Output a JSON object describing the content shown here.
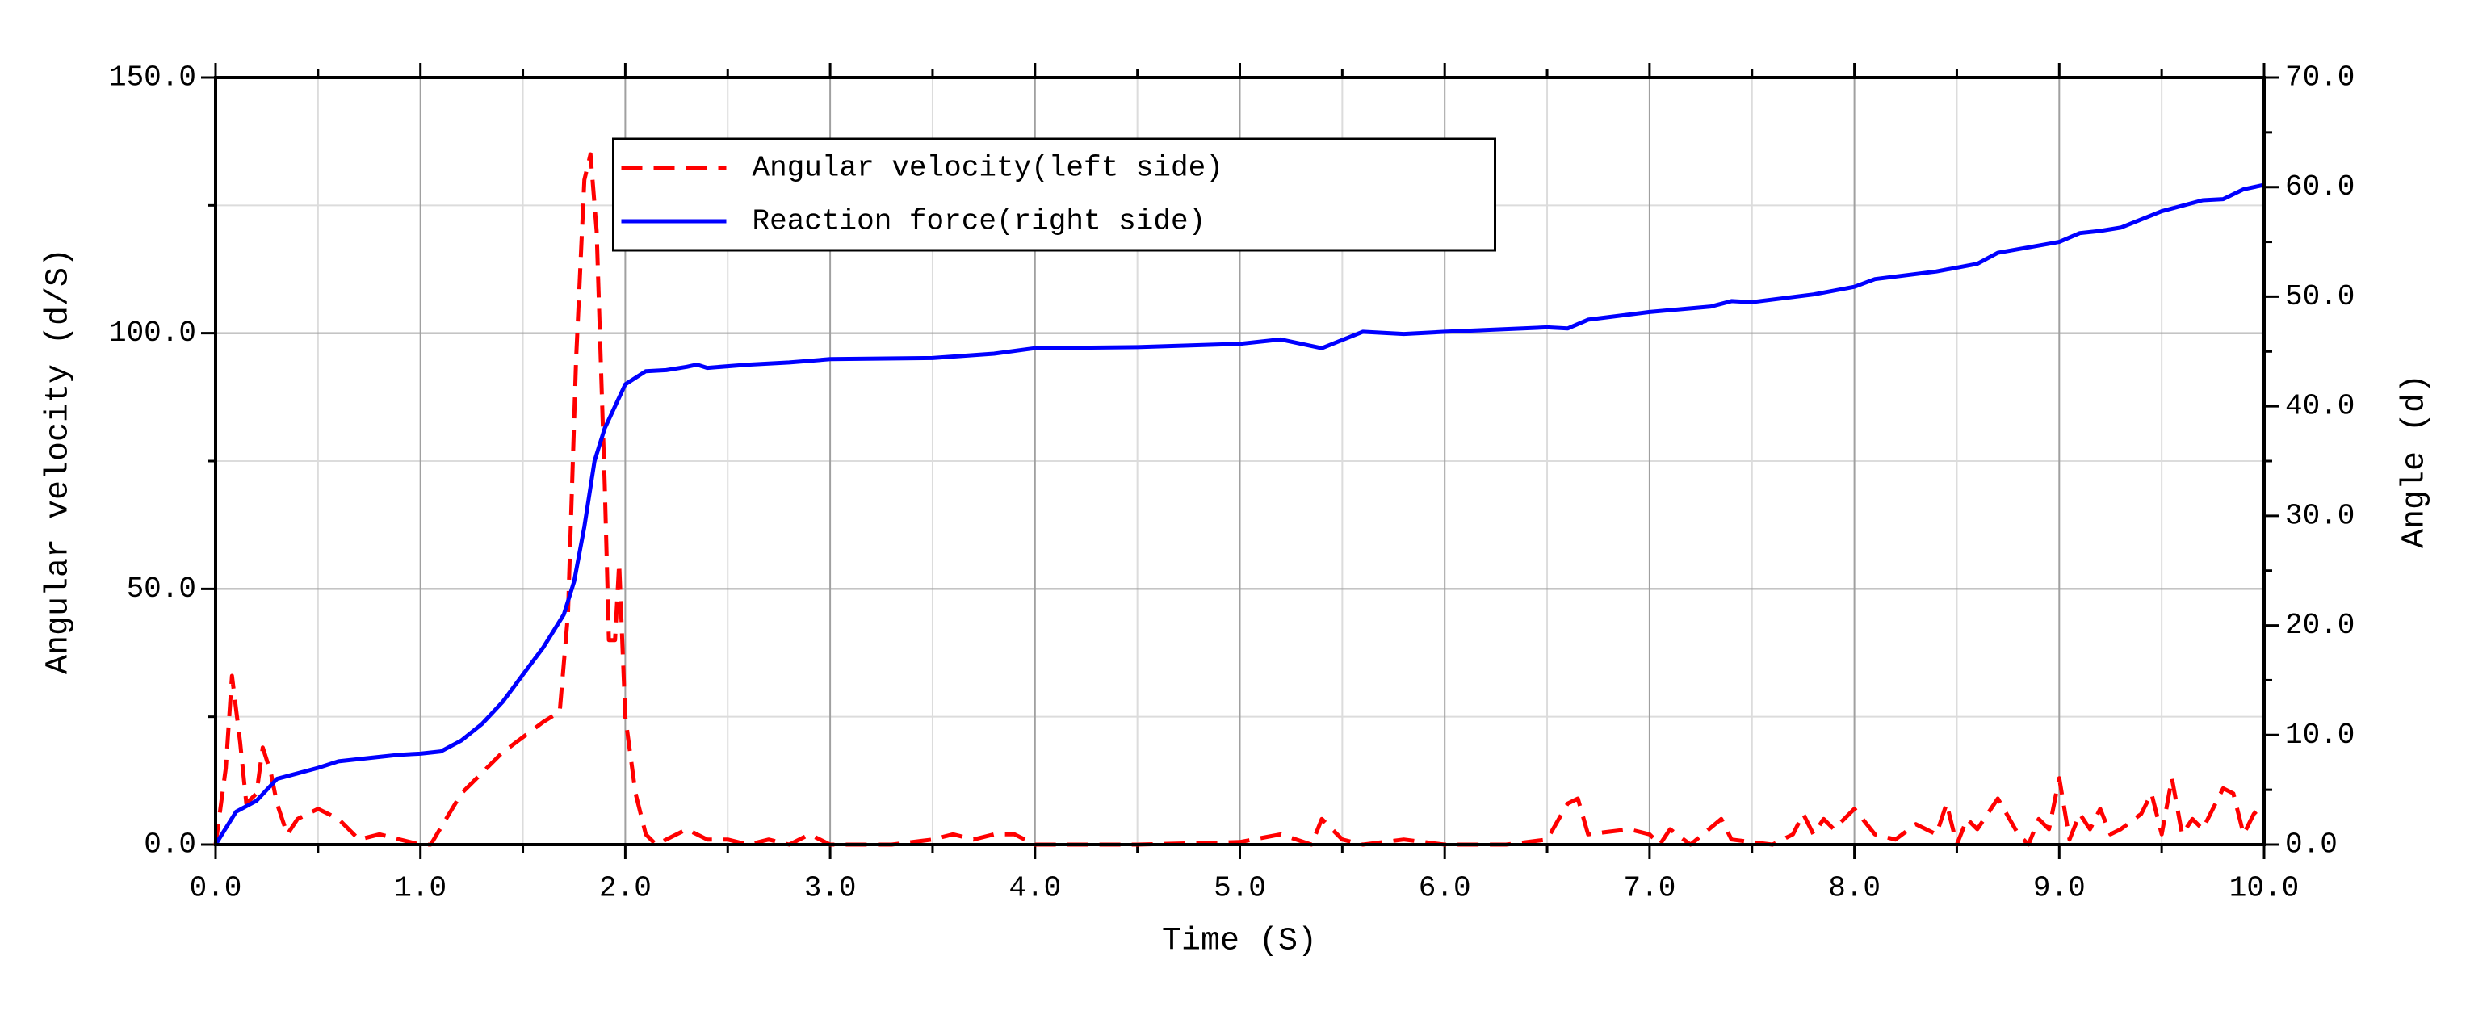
{
  "chart_data": {
    "type": "line",
    "xlabel": "Time (S)",
    "ylabel": "Angular velocity (d/S)",
    "y2label": "Angle (d)",
    "xlim": [
      0,
      10
    ],
    "ylim": [
      0,
      150
    ],
    "y2lim": [
      0,
      70
    ],
    "xticks": [
      {
        "value": 0,
        "label": "0.0"
      },
      {
        "value": 1,
        "label": "1.0"
      },
      {
        "value": 2,
        "label": "2.0"
      },
      {
        "value": 3,
        "label": "3.0"
      },
      {
        "value": 4,
        "label": "4.0"
      },
      {
        "value": 5,
        "label": "5.0"
      },
      {
        "value": 6,
        "label": "6.0"
      },
      {
        "value": 7,
        "label": "7.0"
      },
      {
        "value": 8,
        "label": "8.0"
      },
      {
        "value": 9,
        "label": "9.0"
      },
      {
        "value": 10,
        "label": "10.0"
      }
    ],
    "yticks": [
      {
        "value": 0,
        "label": "0.0"
      },
      {
        "value": 50,
        "label": "50.0"
      },
      {
        "value": 100,
        "label": "100.0"
      },
      {
        "value": 150,
        "label": "150.0"
      }
    ],
    "y2ticks": [
      {
        "value": 0,
        "label": "0.0"
      },
      {
        "value": 10,
        "label": "10.0"
      },
      {
        "value": 20,
        "label": "20.0"
      },
      {
        "value": 30,
        "label": "30.0"
      },
      {
        "value": 40,
        "label": "40.0"
      },
      {
        "value": 50,
        "label": "50.0"
      },
      {
        "value": 60,
        "label": "60.0"
      },
      {
        "value": 70,
        "label": "70.0"
      }
    ],
    "xminorticks": [
      0.5,
      1.5,
      2.5,
      3.5,
      4.5,
      5.5,
      6.5,
      7.5,
      8.5,
      9.5
    ],
    "yminorticks": [
      25,
      75,
      125
    ],
    "y2minorticks": [
      5,
      15,
      25,
      35,
      45,
      55,
      65
    ],
    "grid": true,
    "legend": "upper center",
    "series": [
      {
        "name": "Angular velocity(left side)",
        "color": "#ff0000",
        "style": "dashed",
        "axis": "y",
        "x": [
          0,
          0.05,
          0.08,
          0.12,
          0.15,
          0.2,
          0.23,
          0.27,
          0.3,
          0.35,
          0.4,
          0.5,
          0.6,
          0.7,
          0.8,
          0.9,
          1.0,
          1.05,
          1.2,
          1.4,
          1.6,
          1.68,
          1.72,
          1.76,
          1.8,
          1.83,
          1.86,
          1.9,
          1.92,
          1.95,
          1.97,
          2.0,
          2.05,
          2.1,
          2.15,
          2.2,
          2.3,
          2.4,
          2.5,
          2.6,
          2.7,
          2.8,
          2.9,
          3.0,
          3.3,
          3.5,
          3.6,
          3.7,
          3.8,
          3.9,
          4.0,
          4.5,
          5.0,
          5.2,
          5.35,
          5.4,
          5.5,
          5.6,
          5.8,
          6.0,
          6.3,
          6.5,
          6.6,
          6.65,
          6.7,
          6.9,
          7.0,
          7.05,
          7.1,
          7.2,
          7.35,
          7.4,
          7.6,
          7.7,
          7.75,
          7.8,
          7.85,
          7.9,
          8.0,
          8.1,
          8.2,
          8.3,
          8.4,
          8.45,
          8.5,
          8.55,
          8.6,
          8.7,
          8.8,
          8.85,
          8.9,
          8.95,
          9.0,
          9.05,
          9.1,
          9.15,
          9.2,
          9.25,
          9.3,
          9.4,
          9.45,
          9.5,
          9.55,
          9.6,
          9.65,
          9.7,
          9.8,
          9.85,
          9.9,
          9.95,
          10.0
        ],
        "values": [
          0,
          15,
          33,
          20,
          8,
          10,
          19,
          14,
          8,
          2,
          5,
          7,
          5,
          1,
          2,
          1,
          0,
          0,
          10,
          18,
          24,
          26,
          45,
          95,
          130,
          135,
          120,
          70,
          40,
          40,
          55,
          25,
          10,
          2,
          0,
          1,
          3,
          1,
          1,
          0,
          1,
          0,
          2,
          0,
          0,
          1,
          2,
          1,
          2,
          2,
          0,
          0,
          0.5,
          2,
          0,
          5,
          1,
          0,
          1,
          0,
          0,
          1,
          8,
          9,
          2,
          3,
          2,
          0,
          3,
          0,
          5,
          1,
          0,
          2,
          6,
          2,
          5,
          3,
          7,
          2,
          1,
          4,
          2,
          8,
          0,
          5,
          3,
          9,
          2,
          0,
          5,
          3,
          13,
          1,
          6,
          3,
          7,
          2,
          3,
          6,
          10,
          2,
          13,
          2,
          5,
          3,
          11,
          10,
          2,
          6,
          8
        ]
      },
      {
        "name": "Reaction force(right side)",
        "color": "#0000ff",
        "style": "solid",
        "axis": "y2",
        "x": [
          0,
          0.05,
          0.1,
          0.2,
          0.3,
          0.4,
          0.5,
          0.6,
          0.7,
          0.8,
          0.9,
          1.0,
          1.1,
          1.2,
          1.3,
          1.4,
          1.5,
          1.6,
          1.7,
          1.75,
          1.8,
          1.85,
          1.9,
          2.0,
          2.1,
          2.2,
          2.3,
          2.35,
          2.4,
          2.6,
          2.8,
          3.0,
          3.5,
          3.8,
          4.0,
          4.5,
          5.0,
          5.2,
          5.4,
          5.6,
          5.8,
          6.0,
          6.5,
          6.6,
          6.7,
          7.0,
          7.3,
          7.4,
          7.5,
          7.8,
          8.0,
          8.1,
          8.4,
          8.6,
          8.7,
          9.0,
          9.1,
          9.2,
          9.3,
          9.5,
          9.7,
          9.8,
          9.9,
          10.0
        ],
        "values": [
          0,
          1.5,
          3,
          4,
          6,
          6.5,
          7,
          7.6,
          7.8,
          8,
          8.2,
          8.3,
          8.5,
          9.5,
          11,
          13,
          15.5,
          18,
          21,
          24,
          29,
          35,
          38,
          42,
          43.2,
          43.3,
          43.6,
          43.8,
          43.5,
          43.8,
          44,
          44.3,
          44.4,
          44.8,
          45.3,
          45.4,
          45.7,
          46.1,
          45.3,
          46.8,
          46.6,
          46.8,
          47.2,
          47.1,
          47.9,
          48.6,
          49.1,
          49.6,
          49.5,
          50.2,
          50.9,
          51.6,
          52.3,
          53,
          54,
          55,
          55.8,
          56,
          56.3,
          57.8,
          58.8,
          58.9,
          59.8,
          60.2
        ]
      }
    ]
  }
}
